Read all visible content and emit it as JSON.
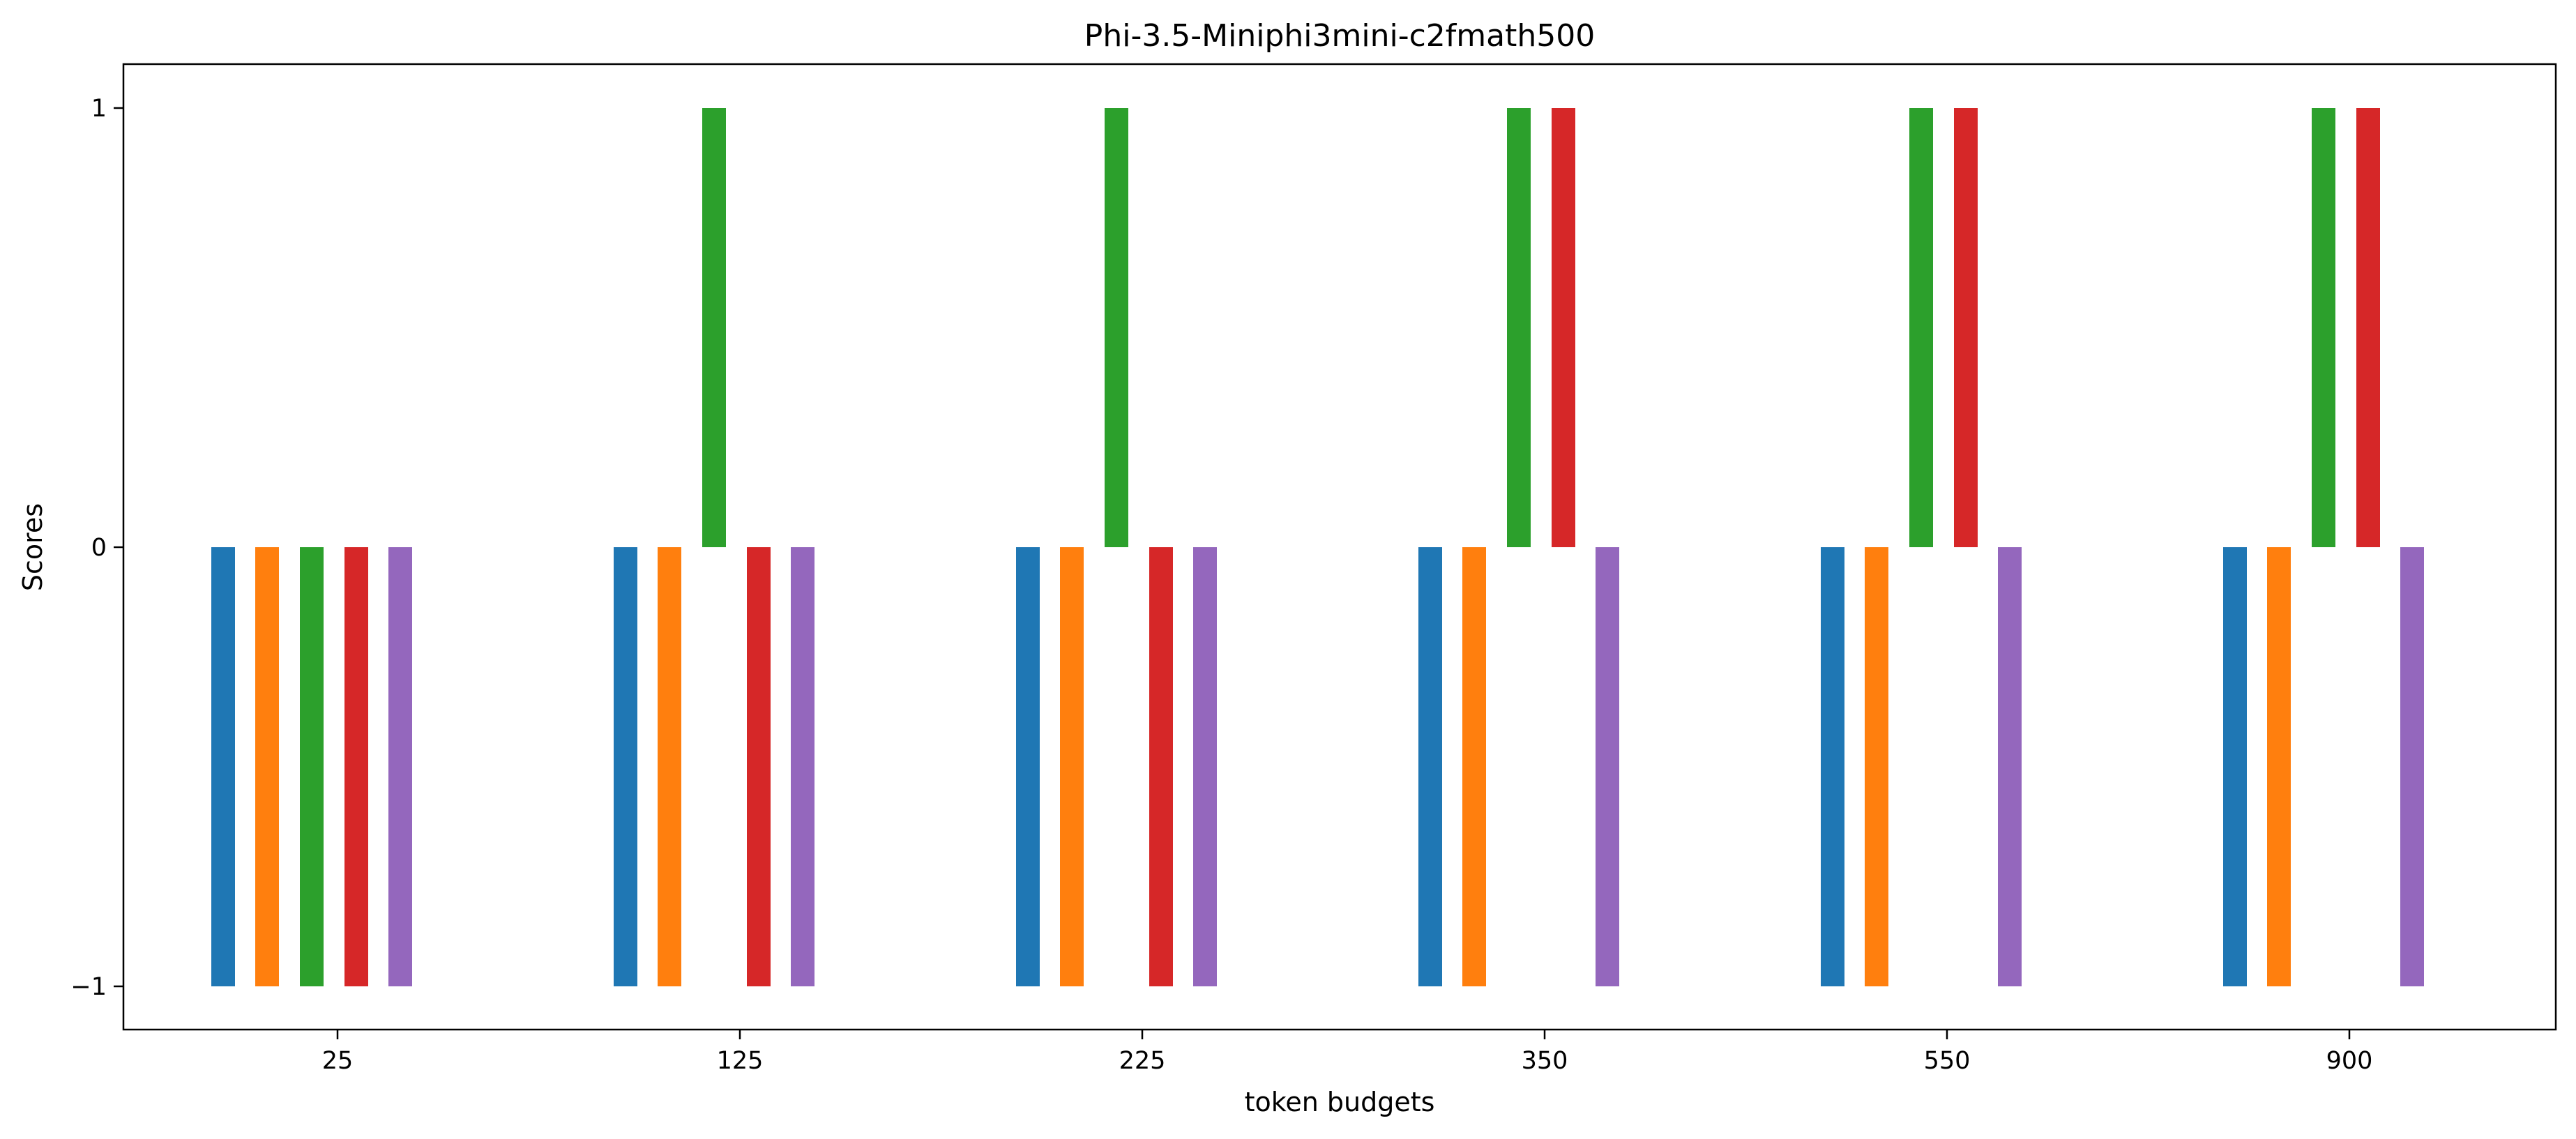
{
  "chart_data": {
    "type": "bar",
    "title": "Phi-3.5-Miniphi3mini-c2fmath500",
    "xlabel": "token budgets",
    "ylabel": "Scores",
    "categories": [
      "25",
      "125",
      "225",
      "350",
      "550",
      "900"
    ],
    "yticks": [
      -1,
      0,
      1
    ],
    "ytick_labels": [
      "−1",
      "0",
      "1"
    ],
    "ylim": [
      -1.1,
      1.1
    ],
    "grid": false,
    "legend": "none",
    "series": [
      {
        "color": "#1f77b4",
        "values": [
          -1,
          -1,
          -1,
          -1,
          -1,
          -1
        ]
      },
      {
        "color": "#ff7f0e",
        "values": [
          -1,
          -1,
          -1,
          -1,
          -1,
          -1
        ]
      },
      {
        "color": "#2ca02c",
        "values": [
          -1,
          1,
          1,
          1,
          1,
          1
        ]
      },
      {
        "color": "#d62728",
        "values": [
          -1,
          -1,
          -1,
          1,
          1,
          1
        ]
      },
      {
        "color": "#9467bd",
        "values": [
          -1,
          -1,
          -1,
          -1,
          -1,
          -1
        ]
      }
    ]
  }
}
